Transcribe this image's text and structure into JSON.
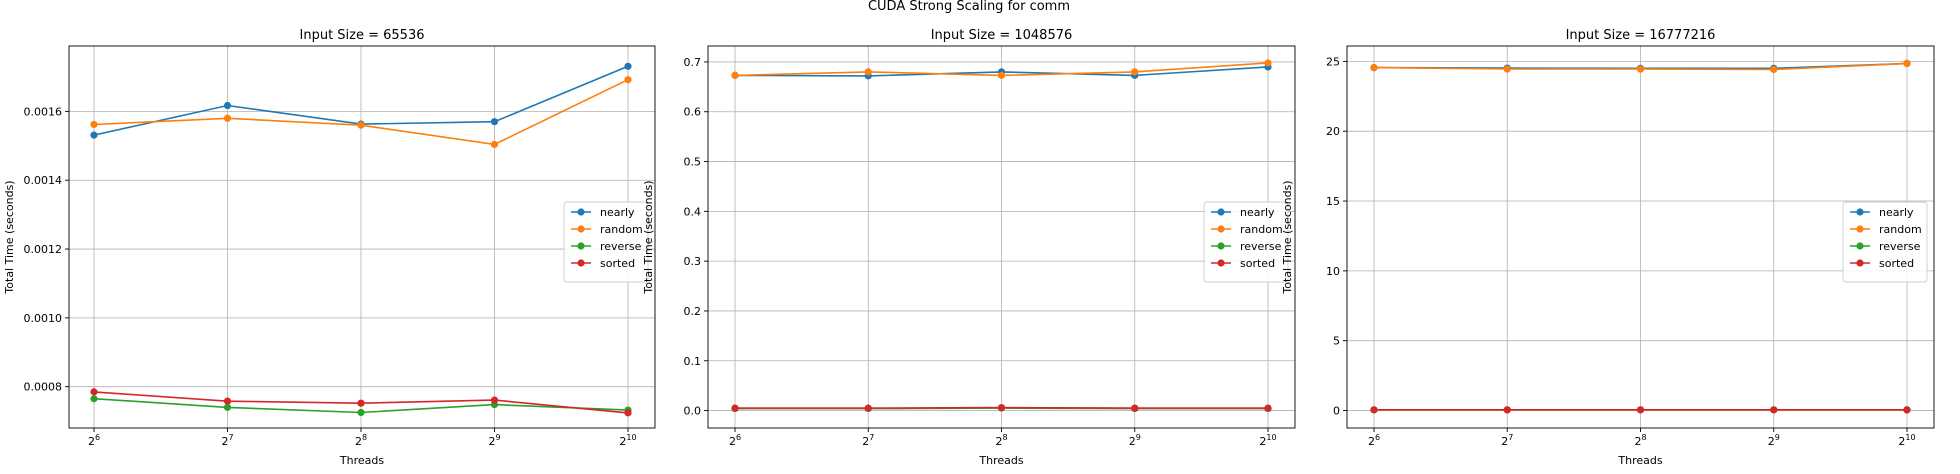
{
  "figure": {
    "suptitle": "CUDA Strong Scaling for comm"
  },
  "legend_labels": [
    "nearly",
    "random",
    "reverse",
    "sorted"
  ],
  "series_colors": {
    "nearly": "#1f77b4",
    "random": "#ff7f0e",
    "reverse": "#2ca02c",
    "sorted": "#d62728"
  },
  "chart_data": [
    {
      "type": "line",
      "title": "Input Size = 65536",
      "xlabel": "Threads",
      "ylabel": "Total Time (seconds)",
      "x_scale": "log2",
      "x": [
        64,
        128,
        256,
        512,
        1024
      ],
      "x_tick_labels": [
        {
          "base": "2",
          "exp": "6"
        },
        {
          "base": "2",
          "exp": "7"
        },
        {
          "base": "2",
          "exp": "8"
        },
        {
          "base": "2",
          "exp": "9"
        },
        {
          "base": "2",
          "exp": "10"
        }
      ],
      "y_ticks": [
        0.0008,
        0.001,
        0.0012,
        0.0014,
        0.0016
      ],
      "y_tick_labels": [
        "0.0008",
        "0.0010",
        "0.0012",
        "0.0014",
        "0.0016"
      ],
      "ylim": [
        0.00068,
        0.00179
      ],
      "grid": true,
      "legend_position": "center-right",
      "series": [
        {
          "name": "nearly",
          "values": [
            0.001531,
            0.001617,
            0.001563,
            0.00157,
            0.001731
          ]
        },
        {
          "name": "random",
          "values": [
            0.001562,
            0.00158,
            0.00156,
            0.001504,
            0.001692
          ]
        },
        {
          "name": "reverse",
          "values": [
            0.000765,
            0.00074,
            0.000725,
            0.000748,
            0.000732
          ]
        },
        {
          "name": "sorted",
          "values": [
            0.000785,
            0.000758,
            0.000752,
            0.000761,
            0.000724
          ]
        }
      ]
    },
    {
      "type": "line",
      "title": "Input Size = 1048576",
      "xlabel": "Threads",
      "ylabel": "Total Time (seconds)",
      "x_scale": "log2",
      "x": [
        64,
        128,
        256,
        512,
        1024
      ],
      "x_tick_labels": [
        {
          "base": "2",
          "exp": "6"
        },
        {
          "base": "2",
          "exp": "7"
        },
        {
          "base": "2",
          "exp": "8"
        },
        {
          "base": "2",
          "exp": "9"
        },
        {
          "base": "2",
          "exp": "10"
        }
      ],
      "y_ticks": [
        0.0,
        0.1,
        0.2,
        0.3,
        0.4,
        0.5,
        0.6,
        0.7
      ],
      "y_tick_labels": [
        "0.0",
        "0.1",
        "0.2",
        "0.3",
        "0.4",
        "0.5",
        "0.6",
        "0.7"
      ],
      "ylim": [
        -0.035,
        0.732
      ],
      "grid": true,
      "legend_position": "center-right",
      "series": [
        {
          "name": "nearly",
          "values": [
            0.673,
            0.672,
            0.68,
            0.673,
            0.69
          ]
        },
        {
          "name": "random",
          "values": [
            0.673,
            0.68,
            0.673,
            0.68,
            0.698
          ]
        },
        {
          "name": "reverse",
          "values": [
            0.004,
            0.004,
            0.005,
            0.004,
            0.004
          ]
        },
        {
          "name": "sorted",
          "values": [
            0.005,
            0.005,
            0.006,
            0.005,
            0.005
          ]
        }
      ]
    },
    {
      "type": "line",
      "title": "Input Size = 16777216",
      "xlabel": "Threads",
      "ylabel": "Total Time (seconds)",
      "x_scale": "log2",
      "x": [
        64,
        128,
        256,
        512,
        1024
      ],
      "x_tick_labels": [
        {
          "base": "2",
          "exp": "6"
        },
        {
          "base": "2",
          "exp": "7"
        },
        {
          "base": "2",
          "exp": "8"
        },
        {
          "base": "2",
          "exp": "9"
        },
        {
          "base": "2",
          "exp": "10"
        }
      ],
      "y_ticks": [
        0,
        5,
        10,
        15,
        20,
        25
      ],
      "y_tick_labels": [
        "0",
        "5",
        "10",
        "15",
        "20",
        "25"
      ],
      "ylim": [
        -1.25,
        26.1
      ],
      "grid": true,
      "legend_position": "center-right",
      "series": [
        {
          "name": "nearly",
          "values": [
            24.55,
            24.52,
            24.5,
            24.5,
            24.85
          ]
        },
        {
          "name": "random",
          "values": [
            24.55,
            24.45,
            24.45,
            24.42,
            24.85
          ]
        },
        {
          "name": "reverse",
          "values": [
            0.05,
            0.05,
            0.05,
            0.05,
            0.05
          ]
        },
        {
          "name": "sorted",
          "values": [
            0.05,
            0.05,
            0.05,
            0.05,
            0.05
          ]
        }
      ]
    }
  ]
}
